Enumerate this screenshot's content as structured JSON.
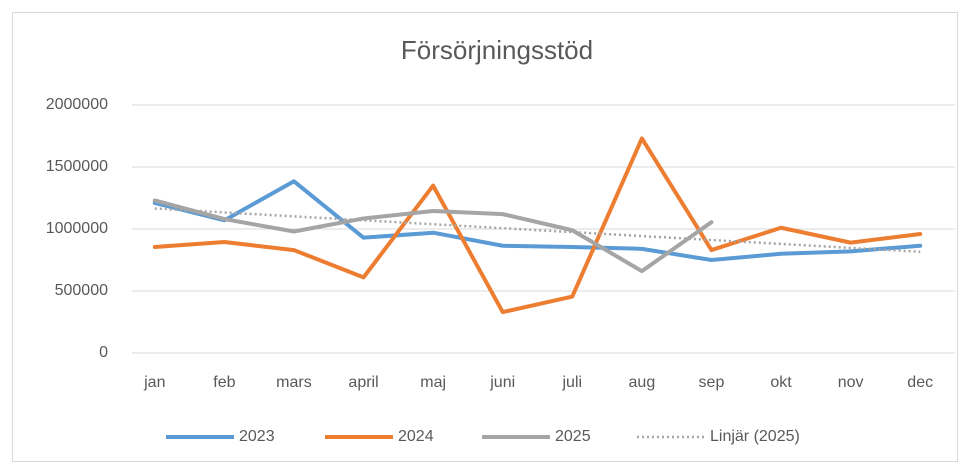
{
  "chart_data": {
    "type": "line",
    "title": "Försörjningsstöd",
    "categories": [
      "jan",
      "feb",
      "mars",
      "april",
      "maj",
      "juni",
      "juli",
      "aug",
      "sep",
      "okt",
      "nov",
      "dec"
    ],
    "series": [
      {
        "name": "2023",
        "color": "#5b9bd5",
        "values": [
          1210000,
          1070000,
          1385000,
          930000,
          970000,
          865000,
          855000,
          840000,
          750000,
          800000,
          820000,
          865000
        ]
      },
      {
        "name": "2024",
        "color": "#ed7d31",
        "values": [
          855000,
          895000,
          830000,
          610000,
          1350000,
          330000,
          455000,
          1730000,
          830000,
          1010000,
          890000,
          960000
        ]
      },
      {
        "name": "2025",
        "color": "#a5a5a5",
        "values": [
          1230000,
          1080000,
          980000,
          1085000,
          1145000,
          1120000,
          990000,
          660000,
          1055000,
          null,
          null,
          null
        ]
      }
    ],
    "trendline": {
      "name": "Linjär (2025)",
      "series": 2,
      "color": "#a5a5a5"
    },
    "ylim": [
      0,
      2000000
    ],
    "yticks": [
      0,
      500000,
      1000000,
      1500000,
      2000000
    ],
    "grid": true,
    "legend": "bottom"
  }
}
